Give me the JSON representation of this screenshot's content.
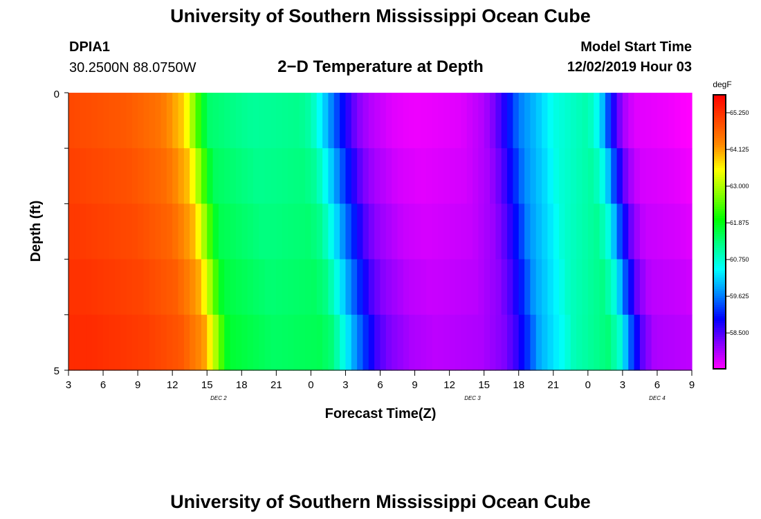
{
  "header": {
    "title": "University of Southern Mississippi Ocean Cube",
    "station": "DPIA1",
    "coords": "30.2500N 88.0750W",
    "subtitle": "2−D Temperature at Depth",
    "start_label": "Model Start Time",
    "start_value": "12/02/2019 Hour 03"
  },
  "footer": {
    "title": "University of Southern Mississippi Ocean Cube"
  },
  "chart_data": {
    "type": "heatmap",
    "xlabel": "Forecast Time(Z)",
    "ylabel": "Depth (ft)",
    "x_tick_labels": [
      "3",
      "6",
      "9",
      "12",
      "15",
      "18",
      "21",
      "0",
      "3",
      "6",
      "9",
      "12",
      "15",
      "18",
      "21",
      "0",
      "3",
      "6",
      "9"
    ],
    "date_labels": [
      {
        "text": "DEC 2",
        "at_hour": 13
      },
      {
        "text": "DEC 3",
        "at_hour": 35
      },
      {
        "text": "DEC 4",
        "at_hour": 51
      }
    ],
    "x_range_hours_from_start": [
      0,
      54
    ],
    "y_range_ft": [
      0,
      5
    ],
    "y_tick_labels": [
      "0",
      "5"
    ],
    "colorbar": {
      "unit": "degF",
      "min": 57.4,
      "max": 65.8,
      "tick_labels": [
        "65.250",
        "64.125",
        "63.000",
        "61.875",
        "60.750",
        "59.625",
        "58.500"
      ],
      "colors": [
        "#ff00ff",
        "#8800ff",
        "#0000ff",
        "#0088ff",
        "#00ffff",
        "#00ff88",
        "#00ff00",
        "#88ff00",
        "#ffff00",
        "#ff8800",
        "#ff4400",
        "#ff0000"
      ]
    },
    "temperature_time_profile_degF": [
      [
        0,
        65.0
      ],
      [
        5,
        64.8
      ],
      [
        8,
        64.5
      ],
      [
        10,
        63.8
      ],
      [
        11,
        62.6
      ],
      [
        12,
        61.4
      ],
      [
        16,
        61.1
      ],
      [
        20,
        61.2
      ],
      [
        21,
        61.0
      ],
      [
        22,
        60.3
      ],
      [
        23,
        59.5
      ],
      [
        24,
        58.8
      ],
      [
        25,
        58.2
      ],
      [
        26,
        57.9
      ],
      [
        28,
        57.6
      ],
      [
        30,
        57.5
      ],
      [
        34,
        57.6
      ],
      [
        36,
        57.9
      ],
      [
        37,
        58.3
      ],
      [
        38,
        58.9
      ],
      [
        39,
        59.6
      ],
      [
        41,
        60.2
      ],
      [
        42,
        60.6
      ],
      [
        45,
        61.0
      ],
      [
        46,
        60.4
      ],
      [
        47,
        59.0
      ],
      [
        48,
        58.0
      ],
      [
        49,
        57.6
      ],
      [
        52,
        57.5
      ],
      [
        53.5,
        57.4
      ],
      [
        54,
        57.3
      ]
    ]
  }
}
